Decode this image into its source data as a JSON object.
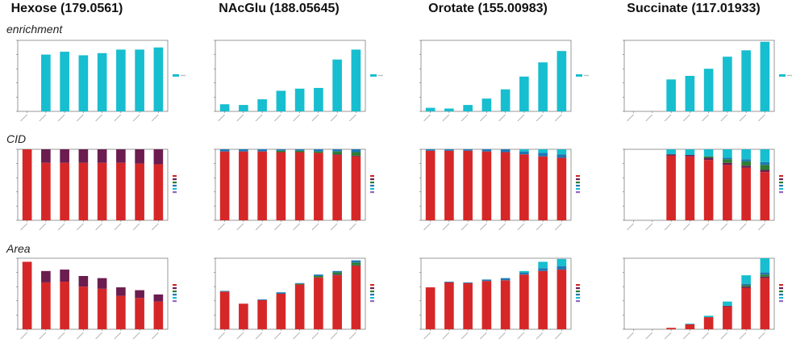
{
  "columns": [
    "Hexose (179.0561)",
    "NAcGlu (188.05645)",
    "Orotate (155.00983)",
    "Succinate (117.01933)"
  ],
  "rows": [
    "enrichment",
    "CID",
    "Area"
  ],
  "colors": {
    "enrichment_bar": "#17becf",
    "cid_m0": "#d62728",
    "cid_m1": "#6b1d4f",
    "cid_m2": "#2e7d32",
    "cid_m3": "#1f77b4",
    "cid_m4": "#17becf",
    "cid_m5": "#9467bd"
  },
  "chart_data": [
    {
      "type": "bar",
      "metabolite": "Hexose",
      "row": "enrichment",
      "ylim": [
        0,
        1
      ],
      "values": [
        0,
        0.8,
        0.84,
        0.79,
        0.82,
        0.87,
        0.87,
        0.9
      ]
    },
    {
      "type": "bar",
      "metabolite": "NAcGlu",
      "row": "enrichment",
      "ylim": [
        0,
        1
      ],
      "values": [
        0.1,
        0.09,
        0.17,
        0.29,
        0.32,
        0.33,
        0.73,
        0.87
      ]
    },
    {
      "type": "bar",
      "metabolite": "Orotate",
      "row": "enrichment",
      "ylim": [
        0,
        1
      ],
      "values": [
        0.05,
        0.04,
        0.09,
        0.18,
        0.31,
        0.49,
        0.69,
        0.85
      ]
    },
    {
      "type": "bar",
      "metabolite": "Succinate",
      "row": "enrichment",
      "ylim": [
        0,
        1
      ],
      "values": [
        0,
        0,
        0.45,
        0.5,
        0.6,
        0.77,
        0.86,
        0.98
      ]
    },
    {
      "type": "stacked-bar",
      "metabolite": "Hexose",
      "row": "CID",
      "ylim": [
        0,
        1
      ],
      "stacks": [
        [
          1.0
        ],
        [
          0.81,
          0.19
        ],
        [
          0.81,
          0.19
        ],
        [
          0.81,
          0.19
        ],
        [
          0.81,
          0.19
        ],
        [
          0.81,
          0.19
        ],
        [
          0.8,
          0.2
        ],
        [
          0.79,
          0.21
        ]
      ]
    },
    {
      "type": "stacked-bar",
      "metabolite": "NAcGlu",
      "row": "CID",
      "ylim": [
        0,
        1
      ],
      "stacks": [
        [
          0.97,
          0.0,
          0.0,
          0.03
        ],
        [
          0.97,
          0.0,
          0.0,
          0.03
        ],
        [
          0.97,
          0.0,
          0.0,
          0.03
        ],
        [
          0.96,
          0.0,
          0.02,
          0.02
        ],
        [
          0.96,
          0.0,
          0.02,
          0.02
        ],
        [
          0.95,
          0.0,
          0.02,
          0.03
        ],
        [
          0.92,
          0.01,
          0.04,
          0.03
        ],
        [
          0.9,
          0.01,
          0.05,
          0.04
        ]
      ]
    },
    {
      "type": "stacked-bar",
      "metabolite": "Orotate",
      "row": "CID",
      "ylim": [
        0,
        1
      ],
      "stacks": [
        [
          0.98,
          0.0,
          0.0,
          0.02
        ],
        [
          0.98,
          0.0,
          0.0,
          0.02
        ],
        [
          0.98,
          0.0,
          0.0,
          0.02
        ],
        [
          0.97,
          0.0,
          0.0,
          0.03
        ],
        [
          0.96,
          0.0,
          0.0,
          0.04
        ],
        [
          0.93,
          0.0,
          0.0,
          0.04,
          0.03
        ],
        [
          0.9,
          0.0,
          0.0,
          0.05,
          0.05
        ],
        [
          0.88,
          0.0,
          0.0,
          0.05,
          0.07
        ]
      ]
    },
    {
      "type": "stacked-bar",
      "metabolite": "Succinate",
      "row": "CID",
      "ylim": [
        0,
        1
      ],
      "stacks": [
        [],
        [],
        [
          0.91,
          0.02,
          0.0,
          0.0,
          0.07
        ],
        [
          0.9,
          0.02,
          0.0,
          0.0,
          0.08
        ],
        [
          0.85,
          0.03,
          0.02,
          0.0,
          0.1
        ],
        [
          0.78,
          0.03,
          0.05,
          0.02,
          0.12
        ],
        [
          0.74,
          0.03,
          0.06,
          0.03,
          0.14
        ],
        [
          0.68,
          0.03,
          0.07,
          0.04,
          0.18
        ]
      ]
    },
    {
      "type": "stacked-bar",
      "metabolite": "Hexose",
      "row": "Area",
      "ylim": [
        0,
        1
      ],
      "stacks": [
        [
          0.95
        ],
        [
          0.66,
          0.16
        ],
        [
          0.67,
          0.17
        ],
        [
          0.6,
          0.15
        ],
        [
          0.57,
          0.15
        ],
        [
          0.47,
          0.12
        ],
        [
          0.44,
          0.11
        ],
        [
          0.39,
          0.1
        ]
      ]
    },
    {
      "type": "stacked-bar",
      "metabolite": "NAcGlu",
      "row": "Area",
      "ylim": [
        0,
        1
      ],
      "stacks": [
        [
          0.53,
          0.0,
          0.0,
          0.01
        ],
        [
          0.36
        ],
        [
          0.41,
          0.0,
          0.0,
          0.01
        ],
        [
          0.5,
          0.0,
          0.0,
          0.02
        ],
        [
          0.63,
          0.0,
          0.01,
          0.01
        ],
        [
          0.73,
          0.0,
          0.02,
          0.02
        ],
        [
          0.76,
          0.01,
          0.03,
          0.02
        ],
        [
          0.89,
          0.01,
          0.04,
          0.03
        ]
      ]
    },
    {
      "type": "stacked-bar",
      "metabolite": "Orotate",
      "row": "Area",
      "ylim": [
        0,
        1
      ],
      "stacks": [
        [
          0.59
        ],
        [
          0.66,
          0.0,
          0.0,
          0.01
        ],
        [
          0.65,
          0.0,
          0.0,
          0.01
        ],
        [
          0.68,
          0.0,
          0.0,
          0.02
        ],
        [
          0.69,
          0.0,
          0.0,
          0.03
        ],
        [
          0.77,
          0.0,
          0.0,
          0.03,
          0.02
        ],
        [
          0.82,
          0.0,
          0.0,
          0.04,
          0.09
        ],
        [
          0.84,
          0.0,
          0.0,
          0.05,
          0.1
        ]
      ]
    },
    {
      "type": "stacked-bar",
      "metabolite": "Succinate",
      "row": "Area",
      "ylim": [
        0,
        1
      ],
      "stacks": [
        [],
        [],
        [
          0.02
        ],
        [
          0.07,
          0.0,
          0.0,
          0.0,
          0.01
        ],
        [
          0.17,
          0.0,
          0.0,
          0.0,
          0.02
        ],
        [
          0.32,
          0.01,
          0.0,
          0.0,
          0.06
        ],
        [
          0.58,
          0.02,
          0.02,
          0.02,
          0.12
        ],
        [
          0.72,
          0.02,
          0.03,
          0.03,
          0.2
        ]
      ]
    }
  ]
}
